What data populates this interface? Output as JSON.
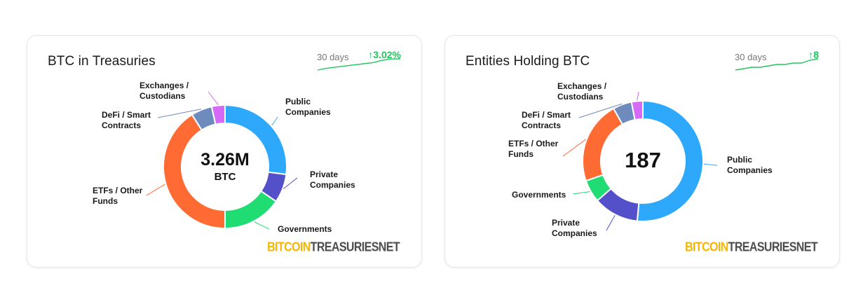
{
  "colors": {
    "public_companies": "#2ea8fb",
    "private_companies": "#5350c9",
    "governments": "#1fdc73",
    "etfs_other_funds": "#ff6b33",
    "defi_smart_contracts": "#6e8bbd",
    "exchanges_custodians": "#d46af5",
    "trend_up": "#22c55e",
    "brand_yellow": "#f7b500"
  },
  "watermark": {
    "part1": "BITCOIN",
    "part2": "TREASURIESNET"
  },
  "cards": [
    {
      "title": "BTC in Treasuries",
      "center_value": "3.26M",
      "center_unit": "BTC",
      "trend": {
        "period": "30 days",
        "change": "3.02%",
        "arrow": "↑",
        "sparkline": [
          0,
          0.5,
          0.8,
          1.1,
          1.4,
          1.7,
          2.0,
          2.6,
          3.0,
          3.02
        ]
      }
    },
    {
      "title": "Entities Holding BTC",
      "center_value": "187",
      "center_unit": "",
      "trend": {
        "period": "30 days",
        "change": "8",
        "arrow": "↑",
        "sparkline": [
          0,
          1,
          2,
          2,
          3,
          4,
          4,
          5,
          5,
          7,
          8
        ]
      }
    }
  ],
  "chart_data": [
    {
      "type": "pie",
      "title": "BTC in Treasuries",
      "donut": true,
      "legend": "none",
      "categories": [
        "Public Companies",
        "Private Companies",
        "Governments",
        "ETFs / Other Funds",
        "DeFi / Smart Contracts",
        "Exchanges / Custodians"
      ],
      "label_lines": [
        [
          "Public",
          "Companies"
        ],
        [
          "Private",
          "Companies"
        ],
        [
          "Governments"
        ],
        [
          "ETFs / Other",
          "Funds"
        ],
        [
          "DeFi / Smart",
          "Contracts"
        ],
        [
          "Exchanges /",
          "Custodians"
        ]
      ],
      "values": [
        0.27,
        0.075,
        0.155,
        0.41,
        0.055,
        0.035
      ]
    },
    {
      "type": "pie",
      "title": "Entities Holding BTC",
      "donut": true,
      "legend": "none",
      "categories": [
        "Public Companies",
        "Private Companies",
        "Governments",
        "ETFs / Other Funds",
        "DeFi / Smart Contracts",
        "Exchanges / Custodians"
      ],
      "label_lines": [
        [
          "Public",
          "Companies"
        ],
        [
          "Private",
          "Companies"
        ],
        [
          "Governments"
        ],
        [
          "ETFs / Other",
          "Funds"
        ],
        [
          "DeFi / Smart",
          "Contracts"
        ],
        [
          "Exchanges /",
          "Custodians"
        ]
      ],
      "values": [
        0.51,
        0.12,
        0.06,
        0.22,
        0.05,
        0.03
      ]
    }
  ]
}
